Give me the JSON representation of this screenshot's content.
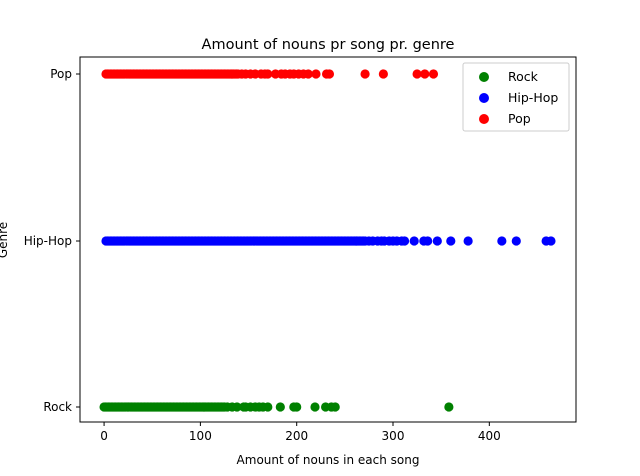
{
  "chart_data": {
    "type": "scatter",
    "title": "Amount of nouns pr song pr. genre",
    "xlabel": "Amount of nouns in each song",
    "ylabel": "Genre",
    "xlim": [
      -25,
      490
    ],
    "x_ticks": [
      0,
      100,
      200,
      300,
      400
    ],
    "categories": [
      "Rock",
      "Hip-Hop",
      "Pop"
    ],
    "grid": false,
    "legend_position": "top-right",
    "series": [
      {
        "name": "Rock",
        "color": "#008000",
        "category": "Rock",
        "dense_ranges": [
          [
            0,
            104
          ],
          [
            104,
            125
          ]
        ],
        "x": [
          128,
          133,
          138,
          145,
          147,
          152,
          157,
          161,
          165,
          170,
          183,
          197,
          200,
          219,
          230,
          236,
          240,
          358
        ]
      },
      {
        "name": "Hip-Hop",
        "color": "#0000ff",
        "category": "Hip-Hop",
        "dense_ranges": [
          [
            2,
            262
          ],
          [
            262,
            272
          ]
        ],
        "x": [
          275,
          279,
          284,
          288,
          291,
          296,
          300,
          304,
          309,
          312,
          322,
          332,
          336,
          346,
          360,
          378,
          413,
          428,
          459,
          464
        ]
      },
      {
        "name": "Pop",
        "color": "#ff0000",
        "category": "Pop",
        "dense_ranges": [
          [
            2,
            133
          ],
          [
            133,
            140
          ]
        ],
        "x": [
          143,
          147,
          152,
          157,
          163,
          167,
          170,
          178,
          184,
          188,
          193,
          197,
          202,
          207,
          212,
          220,
          231,
          234,
          271,
          290,
          325,
          333,
          342
        ]
      }
    ]
  }
}
